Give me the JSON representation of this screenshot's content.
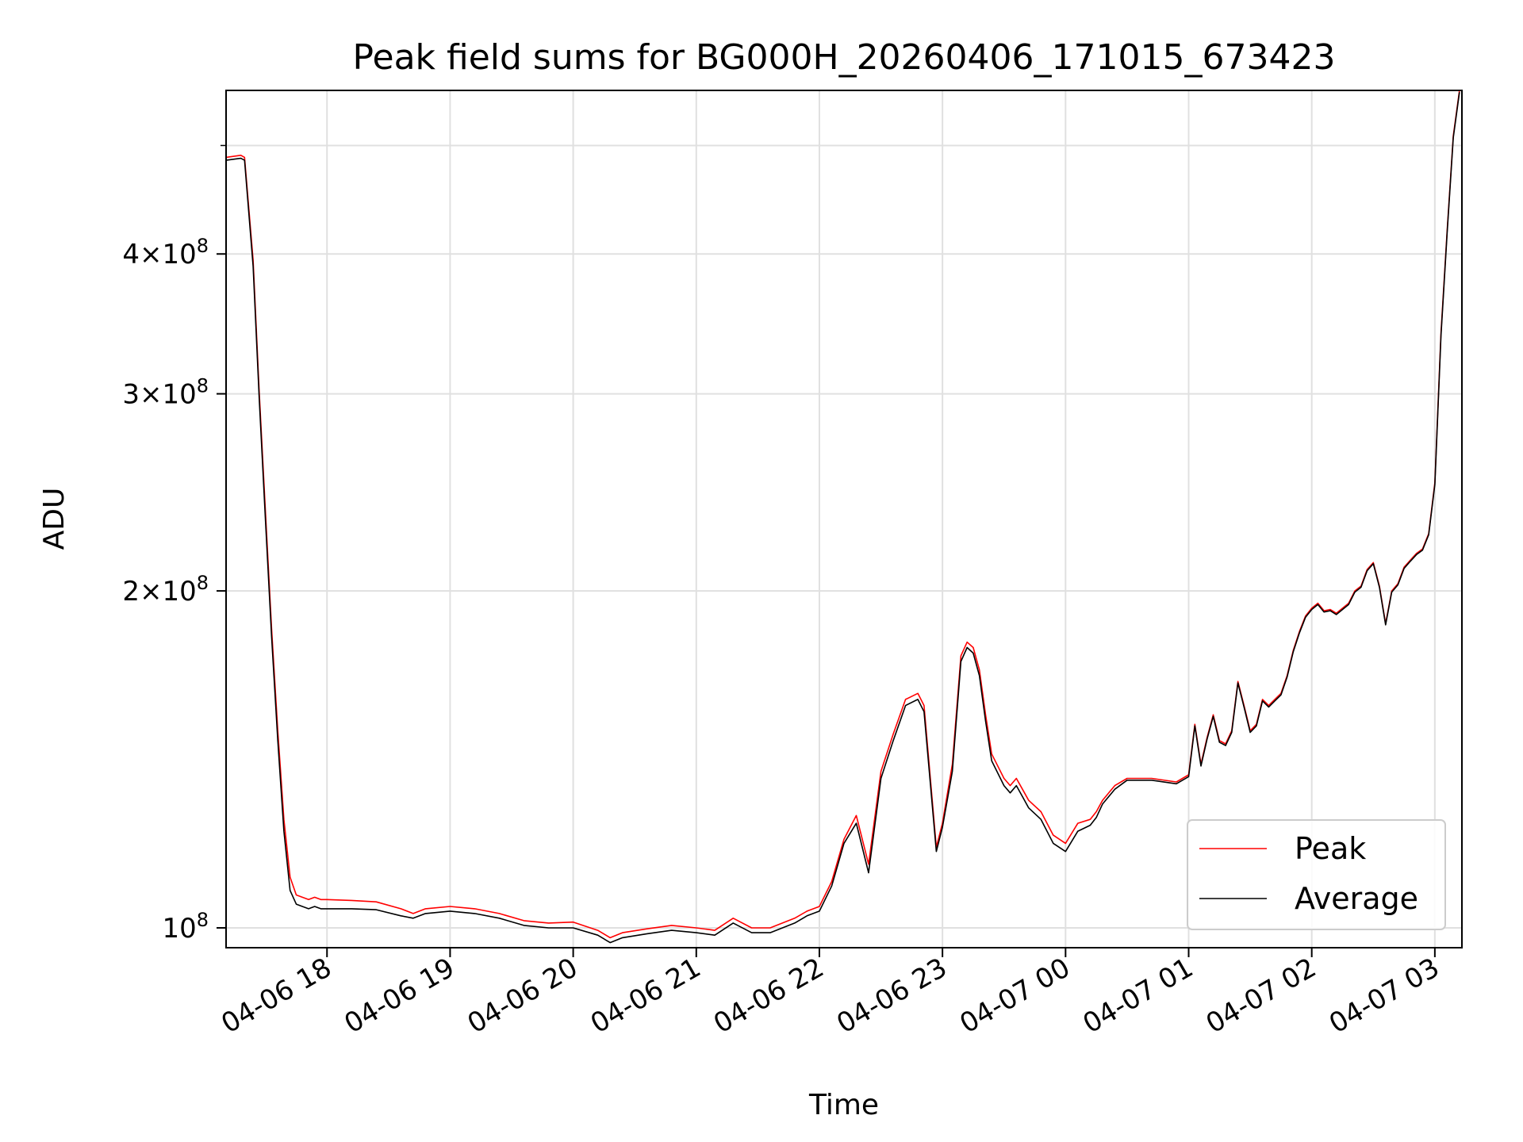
{
  "chart_data": {
    "type": "line",
    "title": "Peak field sums for BG000H_20260406_171015_673423",
    "xlabel": "Time",
    "ylabel": "ADU",
    "yscale": "log",
    "ylim": [
      96000000,
      560000000
    ],
    "xlim_hours": [
      17.18,
      27.22
    ],
    "x_ticks": [
      {
        "h": 18,
        "label": "04-06 18"
      },
      {
        "h": 19,
        "label": "04-06 19"
      },
      {
        "h": 20,
        "label": "04-06 20"
      },
      {
        "h": 21,
        "label": "04-06 21"
      },
      {
        "h": 22,
        "label": "04-06 22"
      },
      {
        "h": 23,
        "label": "04-06 23"
      },
      {
        "h": 24,
        "label": "04-07 00"
      },
      {
        "h": 25,
        "label": "04-07 01"
      },
      {
        "h": 26,
        "label": "04-07 02"
      },
      {
        "h": 27,
        "label": "04-07 03"
      }
    ],
    "y_major_ticks": [
      {
        "v": 100000000,
        "base": "10",
        "exp": "8"
      },
      {
        "v": 200000000,
        "base": "2×10",
        "exp": "8"
      },
      {
        "v": 300000000,
        "base": "3×10",
        "exp": "8"
      },
      {
        "v": 400000000,
        "base": "4×10",
        "exp": "8"
      }
    ],
    "y_minor_ticks": [
      500000000
    ],
    "grid": true,
    "legend_position": "bottom-right",
    "series": [
      {
        "name": "Peak",
        "color": "#ff0000",
        "time_hours": [
          17.18,
          17.3,
          17.33,
          17.4,
          17.45,
          17.5,
          17.55,
          17.6,
          17.65,
          17.7,
          17.75,
          17.8,
          17.85,
          17.9,
          17.95,
          18.0,
          18.2,
          18.4,
          18.6,
          18.7,
          18.8,
          19.0,
          19.2,
          19.4,
          19.6,
          19.8,
          20.0,
          20.2,
          20.3,
          20.4,
          20.6,
          20.8,
          21.0,
          21.15,
          21.3,
          21.45,
          21.6,
          21.8,
          21.9,
          22.0,
          22.1,
          22.2,
          22.3,
          22.4,
          22.5,
          22.6,
          22.7,
          22.8,
          22.85,
          22.95,
          23.0,
          23.08,
          23.15,
          23.2,
          23.25,
          23.3,
          23.35,
          23.4,
          23.5,
          23.55,
          23.6,
          23.65,
          23.7,
          23.8,
          23.9,
          24.0,
          24.1,
          24.2,
          24.25,
          24.3,
          24.4,
          24.5,
          24.7,
          24.9,
          25.0,
          25.05,
          25.1,
          25.15,
          25.2,
          25.25,
          25.3,
          25.35,
          25.4,
          25.45,
          25.5,
          25.55,
          25.6,
          25.65,
          25.7,
          25.75,
          25.8,
          25.85,
          25.9,
          25.95,
          26.0,
          26.05,
          26.1,
          26.15,
          26.2,
          26.3,
          26.35,
          26.4,
          26.45,
          26.5,
          26.55,
          26.6,
          26.65,
          26.7,
          26.75,
          26.8,
          26.85,
          26.9,
          26.95,
          27.0,
          27.05,
          27.1,
          27.15,
          27.2
        ],
        "values": [
          488000000,
          490000000,
          488000000,
          395000000,
          300000000,
          235000000,
          185000000,
          150000000,
          125000000,
          111000000,
          107000000,
          106500000,
          106000000,
          106500000,
          106000000,
          106000000,
          105800000,
          105500000,
          104000000,
          103000000,
          104000000,
          104500000,
          104000000,
          103000000,
          101500000,
          101000000,
          101200000,
          99500000,
          98000000,
          99000000,
          99800000,
          100500000,
          100000000,
          99500000,
          102000000,
          100000000,
          100000000,
          102000000,
          103500000,
          104500000,
          110000000,
          120000000,
          126000000,
          114000000,
          138000000,
          149000000,
          160000000,
          162000000,
          158000000,
          118000000,
          124000000,
          140000000,
          175000000,
          180000000,
          178000000,
          170000000,
          155000000,
          143000000,
          136000000,
          134000000,
          136000000,
          133000000,
          130000000,
          127000000,
          121000000,
          119000000,
          124000000,
          125000000,
          127000000,
          130000000,
          134000000,
          136000000,
          136000000,
          135000000,
          137000000,
          152000000,
          140000000,
          148000000,
          155000000,
          147000000,
          146000000,
          150000000,
          166000000,
          158000000,
          150000000,
          152000000,
          160000000,
          158000000,
          160000000,
          162000000,
          168000000,
          177000000,
          184000000,
          190000000,
          193000000,
          195000000,
          192000000,
          192500000,
          191000000,
          195000000,
          200000000,
          202000000,
          209000000,
          212000000,
          202000000,
          187000000,
          200000000,
          203000000,
          210000000,
          213000000,
          216000000,
          218000000,
          225000000,
          250000000,
          340000000,
          420000000,
          510000000,
          560000000
        ]
      },
      {
        "name": "Average",
        "color": "#000000",
        "time_hours": [
          17.18,
          17.3,
          17.33,
          17.4,
          17.45,
          17.5,
          17.55,
          17.6,
          17.65,
          17.7,
          17.75,
          17.8,
          17.85,
          17.9,
          17.95,
          18.0,
          18.2,
          18.4,
          18.6,
          18.7,
          18.8,
          19.0,
          19.2,
          19.4,
          19.6,
          19.8,
          20.0,
          20.2,
          20.3,
          20.4,
          20.6,
          20.8,
          21.0,
          21.15,
          21.3,
          21.45,
          21.6,
          21.8,
          21.9,
          22.0,
          22.1,
          22.2,
          22.3,
          22.4,
          22.5,
          22.6,
          22.7,
          22.8,
          22.85,
          22.95,
          23.0,
          23.08,
          23.15,
          23.2,
          23.25,
          23.3,
          23.35,
          23.4,
          23.5,
          23.55,
          23.6,
          23.65,
          23.7,
          23.8,
          23.9,
          24.0,
          24.1,
          24.2,
          24.25,
          24.3,
          24.4,
          24.5,
          24.7,
          24.9,
          25.0,
          25.05,
          25.1,
          25.15,
          25.2,
          25.25,
          25.3,
          25.35,
          25.4,
          25.45,
          25.5,
          25.55,
          25.6,
          25.65,
          25.7,
          25.75,
          25.8,
          25.85,
          25.9,
          25.95,
          26.0,
          26.05,
          26.1,
          26.15,
          26.2,
          26.3,
          26.35,
          26.4,
          26.45,
          26.5,
          26.55,
          26.6,
          26.65,
          26.7,
          26.75,
          26.8,
          26.85,
          26.9,
          26.95,
          27.0,
          27.05,
          27.1,
          27.15,
          27.2
        ],
        "values": [
          485000000,
          487000000,
          485000000,
          390000000,
          296000000,
          231000000,
          182000000,
          147000000,
          122000000,
          108000000,
          105000000,
          104500000,
          104000000,
          104500000,
          104000000,
          104000000,
          104000000,
          103800000,
          102500000,
          102000000,
          103000000,
          103500000,
          103000000,
          102000000,
          100500000,
          100000000,
          100000000,
          98500000,
          97000000,
          98000000,
          98800000,
          99500000,
          99000000,
          98500000,
          101000000,
          99000000,
          99000000,
          101000000,
          102500000,
          103500000,
          109000000,
          119000000,
          124000000,
          112000000,
          136000000,
          147000000,
          158000000,
          160000000,
          156000000,
          117000000,
          123000000,
          138000000,
          173000000,
          178000000,
          176000000,
          168000000,
          153000000,
          141000000,
          134000000,
          132000000,
          134000000,
          131000000,
          128000000,
          125000000,
          119000000,
          117000000,
          122000000,
          123500000,
          125500000,
          129000000,
          133000000,
          135500000,
          135500000,
          134500000,
          136500000,
          151500000,
          139500000,
          147500000,
          154500000,
          146500000,
          145500000,
          149500000,
          165500000,
          157500000,
          149500000,
          151500000,
          159500000,
          157500000,
          159500000,
          161500000,
          167500000,
          176500000,
          183500000,
          189500000,
          192500000,
          194500000,
          191500000,
          192000000,
          190500000,
          194500000,
          199500000,
          201500000,
          208500000,
          211500000,
          201500000,
          186500000,
          199500000,
          202500000,
          209500000,
          212500000,
          215500000,
          217500000,
          224500000,
          249000000,
          338000000,
          418000000,
          508000000,
          558000000
        ]
      }
    ]
  }
}
